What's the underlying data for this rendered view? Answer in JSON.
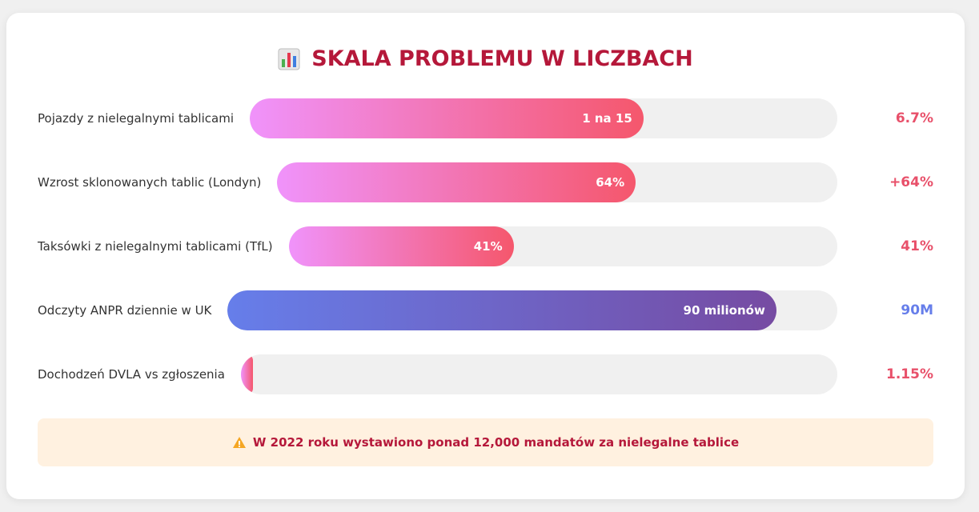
{
  "chart_data": {
    "type": "bar",
    "title": "SKALA PROBLEMU W LICZBACH",
    "categories": [
      "Pojazdy z nielegalnymi tablicami",
      "Wzrost sklonowanych tablic (Londyn)",
      "Taksówki z nielegalnymi tablicami (TfL)",
      "Odczyty ANPR dziennie w UK",
      "Dochodzeń DVLA vs zgłoszenia"
    ],
    "values": [
      67,
      64,
      41,
      90,
      2
    ],
    "xlim": [
      0,
      100
    ],
    "bar_texts": [
      "1 na 15",
      "64%",
      "41%",
      "90 milionów",
      null
    ],
    "stat_texts": [
      "6.7%",
      "+64%",
      "41%",
      "90M",
      "1.15%"
    ],
    "colors": [
      [
        "#f093fb",
        "#f5576c"
      ],
      [
        "#f093fb",
        "#f5576c"
      ],
      [
        "#f093fb",
        "#f5576c"
      ],
      [
        "#667eea",
        "#764ba2"
      ],
      [
        "#f093fb",
        "#f5576c"
      ]
    ],
    "stat_colors": [
      "#e8506a",
      "#e8506a",
      "#e8506a",
      "#667eea",
      "#e8506a"
    ],
    "note": "W 2022 roku wystawiono ponad 12,000 mandatów za nielegalne tablice"
  }
}
